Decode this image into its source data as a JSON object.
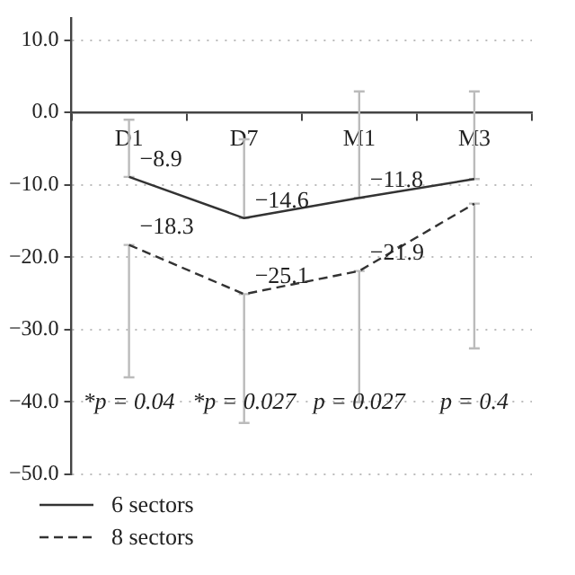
{
  "chart_data": {
    "type": "line",
    "categories": [
      "D1",
      "D7",
      "M1",
      "M3"
    ],
    "series": [
      {
        "name": "6 sectors",
        "color": "#333333",
        "line_style": "solid",
        "values": [
          -8.9,
          -14.6,
          -11.8,
          -9.2
        ],
        "value_labels": [
          "−8.9",
          "−14.6",
          "−11.8",
          null
        ],
        "errors": [
          [
            -8.9,
            -1.0
          ],
          [
            -14.6,
            -3.7
          ],
          [
            -11.8,
            2.9
          ],
          [
            -9.2,
            2.9
          ]
        ]
      },
      {
        "name": "8 sectors",
        "color": "#333333",
        "line_style": "dashed",
        "values": [
          -18.3,
          -25.1,
          -21.9,
          -12.6
        ],
        "value_labels": [
          "−18.3",
          "−25.1",
          "−21.9",
          null
        ],
        "errors": [
          [
            -36.6,
            -18.3
          ],
          [
            -42.9,
            -25.1
          ],
          [
            -40.0,
            -21.9
          ],
          [
            -32.6,
            -12.6
          ]
        ]
      }
    ],
    "ylim": [
      -50,
      13
    ],
    "yticks": [
      {
        "value": 10,
        "label": "10.0"
      },
      {
        "value": 0,
        "label": "0.0"
      },
      {
        "value": -10,
        "label": "−10.0"
      },
      {
        "value": -20,
        "label": "−20.0"
      },
      {
        "value": -30,
        "label": "−30.0"
      },
      {
        "value": -40,
        "label": "−40.0"
      },
      {
        "value": -50,
        "label": "−50.0"
      }
    ],
    "grid": "y",
    "legend": "bottom left",
    "marker": "none",
    "annotations": [
      "*p = 0.04",
      "*p = 0.027",
      "p = 0.027",
      "p = 0.4"
    ]
  }
}
